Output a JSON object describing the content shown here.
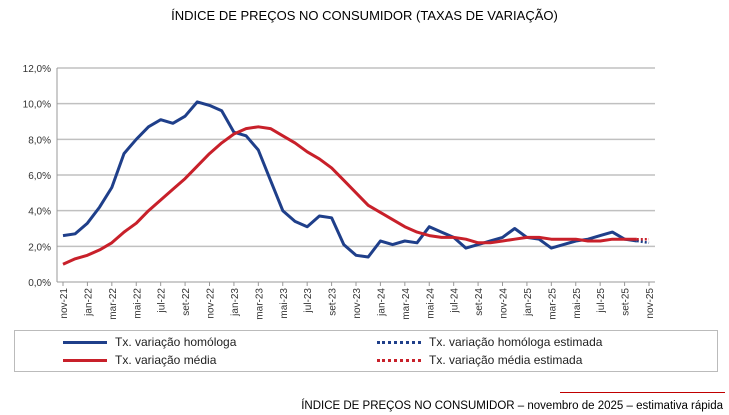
{
  "chart_data": {
    "type": "line",
    "title": "ÍNDICE DE PREÇOS NO CONSUMIDOR (TAXAS DE VARIAÇÃO)",
    "xlabel": "",
    "ylabel": "",
    "ylim": [
      0,
      12
    ],
    "yticks": [
      "0,0%",
      "2,0%",
      "4,0%",
      "6,0%",
      "8,0%",
      "10,0%",
      "12,0%"
    ],
    "xticks": [
      "nov-21",
      "jan-22",
      "mar-22",
      "mai-22",
      "jul-22",
      "set-22",
      "nov-22",
      "jan-23",
      "mar-23",
      "mai-23",
      "jul-23",
      "set-23",
      "nov-23",
      "jan-24",
      "mar-24",
      "mai-24",
      "jul-24",
      "set-24",
      "nov-24",
      "jan-25",
      "mar-25",
      "mai-25",
      "jul-25",
      "set-25",
      "nov-25"
    ],
    "grid": true,
    "legend_position": "bottom",
    "series": [
      {
        "name": "Tx. variação homóloga",
        "color": "#1f3f8a",
        "dashed": false,
        "values": [
          2.6,
          2.7,
          3.3,
          4.2,
          5.3,
          7.2,
          8.0,
          8.7,
          9.1,
          8.9,
          9.3,
          10.1,
          9.9,
          9.6,
          8.4,
          8.2,
          7.4,
          5.7,
          4.0,
          3.4,
          3.1,
          3.7,
          3.6,
          2.1,
          1.5,
          1.4,
          2.3,
          2.1,
          2.3,
          2.2,
          3.1,
          2.8,
          2.5,
          1.9,
          2.1,
          2.3,
          2.5,
          3.0,
          2.5,
          2.4,
          1.9,
          2.1,
          2.3,
          2.4,
          2.6,
          2.8,
          2.4,
          2.3,
          null
        ]
      },
      {
        "name": "Tx. variação média",
        "color": "#c8202a",
        "dashed": false,
        "values": [
          1.0,
          1.3,
          1.5,
          1.8,
          2.2,
          2.8,
          3.3,
          4.0,
          4.6,
          5.2,
          5.8,
          6.5,
          7.2,
          7.8,
          8.3,
          8.6,
          8.7,
          8.6,
          8.2,
          7.8,
          7.3,
          6.9,
          6.4,
          5.7,
          5.0,
          4.3,
          3.9,
          3.5,
          3.1,
          2.8,
          2.6,
          2.5,
          2.5,
          2.4,
          2.2,
          2.2,
          2.3,
          2.4,
          2.5,
          2.5,
          2.4,
          2.4,
          2.4,
          2.3,
          2.3,
          2.4,
          2.4,
          2.4,
          null
        ]
      },
      {
        "name": "Tx. variação homóloga estimada",
        "color": "#1f3f8a",
        "dashed": true,
        "values": [
          null,
          null,
          null,
          null,
          null,
          null,
          null,
          null,
          null,
          null,
          null,
          null,
          null,
          null,
          null,
          null,
          null,
          null,
          null,
          null,
          null,
          null,
          null,
          null,
          null,
          null,
          null,
          null,
          null,
          null,
          null,
          null,
          null,
          null,
          null,
          null,
          null,
          null,
          null,
          null,
          null,
          null,
          null,
          null,
          null,
          null,
          null,
          2.3,
          2.2
        ]
      },
      {
        "name": "Tx. variação média  estimada",
        "color": "#c8202a",
        "dashed": true,
        "values": [
          null,
          null,
          null,
          null,
          null,
          null,
          null,
          null,
          null,
          null,
          null,
          null,
          null,
          null,
          null,
          null,
          null,
          null,
          null,
          null,
          null,
          null,
          null,
          null,
          null,
          null,
          null,
          null,
          null,
          null,
          null,
          null,
          null,
          null,
          null,
          null,
          null,
          null,
          null,
          null,
          null,
          null,
          null,
          null,
          null,
          null,
          null,
          2.4,
          2.4
        ]
      }
    ]
  },
  "footer": "ÍNDICE DE PREÇOS NO CONSUMIDOR – novembro de 2025 – estimativa rápida"
}
